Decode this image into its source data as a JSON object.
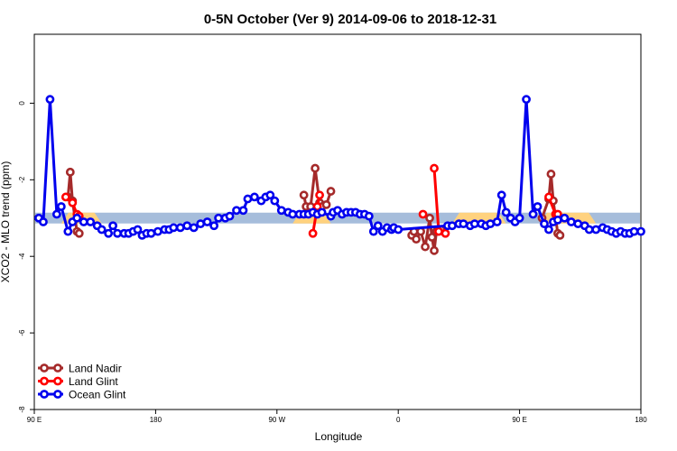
{
  "chart_data": {
    "type": "line",
    "title": "0-5N October (Ver 9)   2014-09-06 to 2018-12-31",
    "xlabel": "Longitude",
    "ylabel": "XCO2 - MLO trend (ppm)",
    "xlim": [
      -90,
      180
    ],
    "ylim": [
      -8,
      1.8
    ],
    "x_ticks": [
      {
        "value": -90,
        "label": "90 E"
      },
      {
        "value": -36,
        "label": "180"
      },
      {
        "value": 18,
        "label": "90 W"
      },
      {
        "value": 72,
        "label": "0"
      },
      {
        "value": 126,
        "label": "90 E"
      },
      {
        "value": 180,
        "label": "180"
      }
    ],
    "y_ticks": [
      {
        "value": 0,
        "label": "0"
      },
      {
        "value": -2,
        "label": "-2"
      },
      {
        "value": -4,
        "label": "-4"
      },
      {
        "value": -6,
        "label": "-6"
      },
      {
        "value": -8,
        "label": "-8"
      }
    ],
    "grid": false,
    "legend_position": "bottom-left",
    "reference_band": {
      "y": -3.0,
      "color": "#a6bddb",
      "highlight_color": "#ffd27f",
      "highlight_ranges": [
        [
          -78,
          -60
        ],
        [
          25,
          42
        ],
        [
          96,
          120
        ],
        [
          135,
          160
        ]
      ]
    },
    "series": [
      {
        "name": "Land Nadir",
        "color": "#a52a2a",
        "segments": [
          [
            [
              -75,
              -2.45
            ],
            [
              -74,
              -1.8
            ],
            [
              -73,
              -2.55
            ],
            [
              -71,
              -3.35
            ],
            [
              -70,
              -3.4
            ]
          ],
          [
            [
              30,
              -2.4
            ],
            [
              31,
              -2.7
            ],
            [
              33,
              -2.7
            ],
            [
              35,
              -1.7
            ],
            [
              37,
              -2.6
            ],
            [
              38,
              -2.7
            ],
            [
              40,
              -2.65
            ],
            [
              42,
              -2.3
            ]
          ],
          [
            [
              78,
              -3.45
            ],
            [
              79,
              -3.35
            ],
            [
              80,
              -3.55
            ],
            [
              82,
              -3.35
            ],
            [
              84,
              -3.75
            ],
            [
              86,
              -3.0
            ],
            [
              87,
              -3.5
            ],
            [
              88,
              -3.85
            ],
            [
              89,
              -3.35
            ],
            [
              91,
              -3.3
            ]
          ],
          [
            [
              136,
              -3.0
            ],
            [
              139,
              -2.5
            ],
            [
              140,
              -1.85
            ],
            [
              141,
              -2.55
            ],
            [
              143,
              -3.4
            ],
            [
              144,
              -3.45
            ]
          ]
        ]
      },
      {
        "name": "Land Glint",
        "color": "#ff0000",
        "segments": [
          [
            [
              -76,
              -2.45
            ],
            [
              -73,
              -2.6
            ],
            [
              -71,
              -2.9
            ],
            [
              -70,
              -2.95
            ]
          ],
          [
            [
              34,
              -3.4
            ],
            [
              36,
              -2.7
            ],
            [
              37,
              -2.4
            ]
          ],
          [
            [
              83,
              -2.9
            ]
          ],
          [
            [
              88,
              -1.7
            ],
            [
              90,
              -3.35
            ],
            [
              93,
              -3.4
            ]
          ],
          [
            [
              139,
              -2.45
            ],
            [
              142,
              -2.9
            ],
            [
              143,
              -2.9
            ]
          ]
        ]
      },
      {
        "name": "Ocean Glint",
        "color": "#0000ee",
        "segments": [
          [
            [
              -88,
              -3.0
            ],
            [
              -86,
              -3.1
            ],
            [
              -83,
              0.1
            ],
            [
              -80,
              -2.9
            ],
            [
              -78,
              -2.7
            ],
            [
              -75,
              -3.35
            ],
            [
              -73,
              -3.1
            ],
            [
              -71,
              -3.0
            ],
            [
              -68,
              -3.1
            ],
            [
              -65,
              -3.1
            ],
            [
              -62,
              -3.2
            ],
            [
              -60,
              -3.3
            ],
            [
              -57,
              -3.4
            ],
            [
              -55,
              -3.2
            ],
            [
              -53,
              -3.4
            ],
            [
              -50,
              -3.4
            ],
            [
              -48,
              -3.4
            ],
            [
              -46,
              -3.35
            ],
            [
              -44,
              -3.3
            ],
            [
              -42,
              -3.45
            ],
            [
              -40,
              -3.4
            ],
            [
              -38,
              -3.4
            ],
            [
              -35,
              -3.35
            ],
            [
              -32,
              -3.3
            ],
            [
              -30,
              -3.3
            ],
            [
              -28,
              -3.25
            ],
            [
              -25,
              -3.25
            ],
            [
              -22,
              -3.2
            ],
            [
              -19,
              -3.25
            ],
            [
              -16,
              -3.15
            ],
            [
              -13,
              -3.1
            ],
            [
              -10,
              -3.2
            ],
            [
              -8,
              -3.0
            ],
            [
              -5,
              -3.0
            ],
            [
              -3,
              -2.95
            ],
            [
              0,
              -2.8
            ],
            [
              3,
              -2.8
            ],
            [
              5,
              -2.5
            ],
            [
              8,
              -2.45
            ],
            [
              11,
              -2.55
            ],
            [
              13,
              -2.45
            ],
            [
              15,
              -2.4
            ],
            [
              17,
              -2.55
            ],
            [
              20,
              -2.8
            ],
            [
              23,
              -2.85
            ],
            [
              25,
              -2.9
            ],
            [
              28,
              -2.9
            ],
            [
              30,
              -2.9
            ],
            [
              32,
              -2.9
            ],
            [
              34,
              -2.85
            ],
            [
              36,
              -2.9
            ],
            [
              38,
              -2.85
            ],
            [
              42,
              -2.95
            ],
            [
              43,
              -2.85
            ],
            [
              45,
              -2.8
            ],
            [
              47,
              -2.9
            ],
            [
              49,
              -2.85
            ],
            [
              51,
              -2.85
            ],
            [
              53,
              -2.85
            ],
            [
              55,
              -2.9
            ],
            [
              57,
              -2.9
            ],
            [
              59,
              -2.95
            ],
            [
              61,
              -3.35
            ],
            [
              63,
              -3.2
            ],
            [
              65,
              -3.35
            ],
            [
              67,
              -3.25
            ],
            [
              69,
              -3.3
            ],
            [
              70,
              -3.25
            ],
            [
              72,
              -3.3
            ],
            [
              94,
              -3.2
            ],
            [
              96,
              -3.2
            ],
            [
              99,
              -3.15
            ],
            [
              101,
              -3.15
            ],
            [
              104,
              -3.2
            ],
            [
              106,
              -3.15
            ],
            [
              109,
              -3.15
            ],
            [
              111,
              -3.2
            ],
            [
              113,
              -3.15
            ],
            [
              116,
              -3.1
            ],
            [
              118,
              -2.4
            ],
            [
              120,
              -2.85
            ],
            [
              122,
              -3.0
            ],
            [
              124,
              -3.1
            ],
            [
              126,
              -3.0
            ],
            [
              129,
              0.1
            ],
            [
              132,
              -2.9
            ],
            [
              134,
              -2.7
            ],
            [
              137,
              -3.15
            ],
            [
              139,
              -3.3
            ],
            [
              141,
              -3.1
            ],
            [
              143,
              -3.05
            ],
            [
              146,
              -3.0
            ],
            [
              149,
              -3.1
            ],
            [
              152,
              -3.15
            ],
            [
              155,
              -3.2
            ],
            [
              157,
              -3.3
            ],
            [
              160,
              -3.3
            ],
            [
              163,
              -3.25
            ],
            [
              165,
              -3.3
            ],
            [
              167,
              -3.35
            ],
            [
              169,
              -3.4
            ],
            [
              171,
              -3.35
            ],
            [
              173,
              -3.4
            ],
            [
              175,
              -3.4
            ],
            [
              177,
              -3.35
            ],
            [
              180,
              -3.35
            ]
          ]
        ]
      }
    ]
  }
}
